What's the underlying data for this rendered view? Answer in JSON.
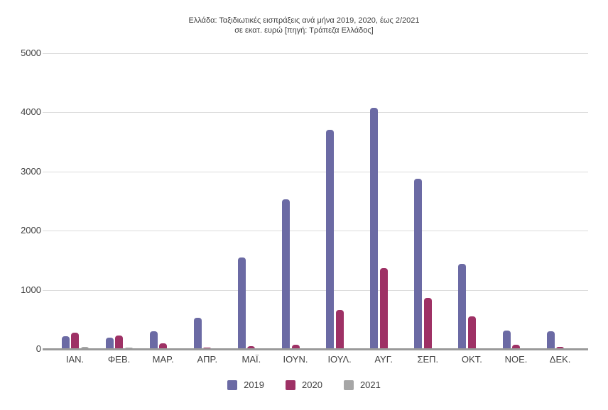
{
  "title": {
    "line1": "Ελλάδα: Ταξιδιωτικές εισπράξεις ανά μήνα 2019, 2020, έως 2/2021",
    "line2": "σε εκατ. ευρώ [πηγή: Τράπεζα Ελλάδος]"
  },
  "chart_data": {
    "type": "bar",
    "title": "Ελλάδα: Ταξιδιωτικές εισπράξεις ανά μήνα 2019, 2020, έως 2/2021 σε εκατ. ευρώ [πηγή: Τράπεζα Ελλάδος]",
    "categories": [
      "ΙΑΝ.",
      "ΦΕΒ.",
      "ΜΑΡ.",
      "ΑΠΡ.",
      "ΜΑΪ.",
      "ΙΟΥΝ.",
      "ΙΟΥΛ.",
      "ΑΥΓ.",
      "ΣΕΠ.",
      "ΟΚΤ.",
      "ΝΟΕ.",
      "ΔΕΚ."
    ],
    "series": [
      {
        "name": "2019",
        "color": "#6b6aa4",
        "values": [
          220,
          195,
          300,
          530,
          1550,
          2530,
          3700,
          4080,
          2880,
          1440,
          310,
          300
        ]
      },
      {
        "name": "2020",
        "color": "#9e3165",
        "values": [
          280,
          230,
          90,
          20,
          45,
          75,
          660,
          1370,
          860,
          550,
          75,
          35
        ]
      },
      {
        "name": "2021",
        "color": "#a6a6a6",
        "values": [
          35,
          25,
          null,
          null,
          null,
          null,
          null,
          null,
          null,
          null,
          null,
          null
        ]
      }
    ],
    "xlabel": "",
    "ylabel": "",
    "ylim": [
      0,
      5000
    ],
    "yticks": [
      0,
      1000,
      2000,
      3000,
      4000,
      5000
    ],
    "grid": true,
    "legend_position": "bottom"
  }
}
